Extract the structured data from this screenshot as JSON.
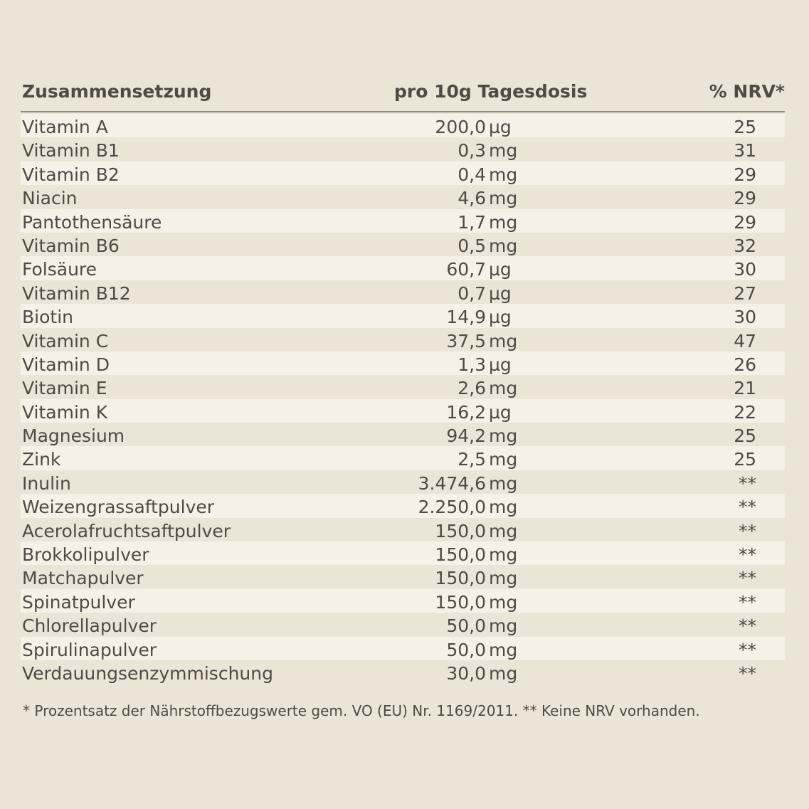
{
  "table": {
    "headers": {
      "name": "Zusammensetzung",
      "amount": "pro 10g Tagesdosis",
      "nrv": "% NRV*"
    },
    "rows": [
      {
        "name": "Vitamin A",
        "value": "200,0",
        "unit": " µg",
        "nrv": "25"
      },
      {
        "name": "Vitamin B1",
        "value": "0,3",
        "unit": "mg",
        "nrv": "31"
      },
      {
        "name": "Vitamin B2",
        "value": "0,4",
        "unit": "mg",
        "nrv": "29"
      },
      {
        "name": "Niacin",
        "value": "4,6",
        "unit": "mg",
        "nrv": "29"
      },
      {
        "name": "Pantothensäure",
        "value": "1,7",
        "unit": "mg",
        "nrv": "29"
      },
      {
        "name": "Vitamin B6",
        "value": "0,5",
        "unit": "mg",
        "nrv": "32"
      },
      {
        "name": "Folsäure",
        "value": "60,7",
        "unit": " µg",
        "nrv": "30"
      },
      {
        "name": "Vitamin B12",
        "value": "0,7",
        "unit": " µg",
        "nrv": "27"
      },
      {
        "name": "Biotin",
        "value": "14,9",
        "unit": " µg",
        "nrv": "30"
      },
      {
        "name": "Vitamin C",
        "value": "37,5",
        "unit": "mg",
        "nrv": "47"
      },
      {
        "name": "Vitamin D",
        "value": "1,3",
        "unit": " µg",
        "nrv": "26"
      },
      {
        "name": "Vitamin E",
        "value": "2,6",
        "unit": "mg",
        "nrv": "21"
      },
      {
        "name": "Vitamin K",
        "value": "16,2",
        "unit": " µg",
        "nrv": "22"
      },
      {
        "name": "Magnesium",
        "value": "94,2",
        "unit": "mg",
        "nrv": "25"
      },
      {
        "name": "Zink",
        "value": "2,5",
        "unit": "mg",
        "nrv": "25"
      },
      {
        "name": "Inulin",
        "value": "3.474,6",
        "unit": "mg",
        "nrv": "**"
      },
      {
        "name": "Weizengrassaftpulver",
        "value": "2.250,0",
        "unit": "mg",
        "nrv": "**"
      },
      {
        "name": "Acerolafruchtsaftpulver",
        "value": "150,0",
        "unit": "mg",
        "nrv": "**"
      },
      {
        "name": "Brokkolipulver",
        "value": "150,0",
        "unit": "mg",
        "nrv": "**"
      },
      {
        "name": "Matchapulver",
        "value": "150,0",
        "unit": "mg",
        "nrv": "**"
      },
      {
        "name": "Spinatpulver",
        "value": "150,0",
        "unit": "mg",
        "nrv": "**"
      },
      {
        "name": "Chlorellapulver",
        "value": "50,0",
        "unit": "mg",
        "nrv": "**"
      },
      {
        "name": "Spirulinapulver",
        "value": "50,0",
        "unit": "mg",
        "nrv": "**"
      },
      {
        "name": "Verdauungsenzymmischung",
        "value": "30,0",
        "unit": "mg",
        "nrv": "**"
      }
    ]
  },
  "footnote": "* Prozentsatz der Nährstoffbezugswerte gem. VO (EU)  Nr. 1169/2011. ** Keine NRV vorhanden."
}
